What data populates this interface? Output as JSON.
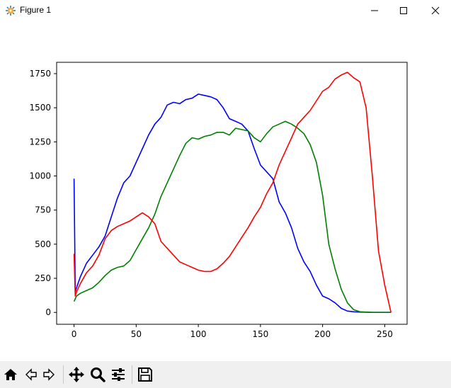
{
  "window": {
    "title": "Figure 1"
  },
  "toolbar": {
    "buttons": [
      {
        "name": "home-button",
        "icon": "home-icon"
      },
      {
        "name": "back-button",
        "icon": "back-arrow-icon"
      },
      {
        "name": "forward-button",
        "icon": "forward-arrow-icon"
      },
      {
        "name": "pan-button",
        "icon": "move-icon"
      },
      {
        "name": "zoom-button",
        "icon": "magnifier-icon"
      },
      {
        "name": "configure-subplots-button",
        "icon": "sliders-icon"
      },
      {
        "name": "save-button",
        "icon": "floppy-disk-icon"
      }
    ]
  },
  "chart_data": {
    "type": "line",
    "title": "",
    "xlabel": "",
    "ylabel": "",
    "xlim": [
      -14,
      268
    ],
    "ylim": [
      -87,
      1833
    ],
    "xticks": [
      0,
      50,
      100,
      150,
      200,
      250
    ],
    "yticks": [
      0,
      250,
      500,
      750,
      1000,
      1250,
      1500,
      1750
    ],
    "grid": false,
    "series": [
      {
        "color": "#0000ff",
        "x": [
          0,
          1,
          2,
          5,
          10,
          15,
          20,
          25,
          30,
          35,
          40,
          45,
          50,
          55,
          60,
          65,
          70,
          75,
          80,
          85,
          90,
          95,
          100,
          105,
          110,
          115,
          120,
          125,
          130,
          135,
          140,
          145,
          150,
          155,
          160,
          165,
          170,
          175,
          180,
          185,
          190,
          195,
          200,
          205,
          210,
          215,
          220,
          225,
          230,
          235,
          240,
          245,
          250,
          255
        ],
        "y": [
          980,
          150,
          180,
          260,
          360,
          420,
          480,
          560,
          700,
          840,
          950,
          1000,
          1100,
          1200,
          1300,
          1380,
          1430,
          1520,
          1540,
          1530,
          1560,
          1570,
          1600,
          1590,
          1580,
          1560,
          1500,
          1420,
          1400,
          1380,
          1330,
          1200,
          1080,
          1030,
          980,
          810,
          730,
          620,
          470,
          370,
          300,
          200,
          120,
          100,
          70,
          30,
          10,
          5,
          2,
          1,
          0,
          0,
          0,
          0
        ]
      },
      {
        "color": "#008000",
        "x": [
          0,
          1,
          2,
          5,
          10,
          15,
          20,
          25,
          30,
          35,
          40,
          45,
          50,
          55,
          60,
          65,
          70,
          75,
          80,
          85,
          90,
          95,
          100,
          105,
          110,
          115,
          120,
          125,
          130,
          135,
          140,
          145,
          150,
          155,
          160,
          165,
          170,
          175,
          180,
          185,
          190,
          195,
          200,
          205,
          210,
          215,
          220,
          225,
          230,
          235,
          240,
          245,
          250,
          255
        ],
        "y": [
          80,
          100,
          120,
          140,
          160,
          180,
          220,
          270,
          310,
          330,
          340,
          380,
          460,
          540,
          620,
          720,
          850,
          950,
          1050,
          1150,
          1240,
          1280,
          1270,
          1290,
          1300,
          1320,
          1320,
          1300,
          1350,
          1340,
          1330,
          1280,
          1250,
          1310,
          1360,
          1380,
          1400,
          1380,
          1350,
          1310,
          1230,
          1100,
          860,
          500,
          320,
          170,
          70,
          20,
          5,
          2,
          0,
          0,
          0,
          0
        ]
      },
      {
        "color": "#ff0000",
        "x": [
          0,
          1,
          2,
          5,
          10,
          15,
          20,
          25,
          30,
          35,
          40,
          45,
          50,
          55,
          60,
          65,
          70,
          75,
          80,
          85,
          90,
          95,
          100,
          105,
          110,
          115,
          120,
          125,
          130,
          135,
          140,
          145,
          150,
          155,
          160,
          165,
          170,
          175,
          180,
          185,
          190,
          195,
          200,
          205,
          210,
          215,
          220,
          225,
          230,
          235,
          240,
          245,
          250,
          255
        ],
        "y": [
          430,
          120,
          150,
          210,
          290,
          340,
          420,
          540,
          600,
          630,
          650,
          670,
          700,
          730,
          700,
          650,
          520,
          470,
          420,
          370,
          350,
          330,
          310,
          300,
          300,
          320,
          360,
          410,
          480,
          550,
          620,
          700,
          770,
          870,
          950,
          1080,
          1180,
          1280,
          1380,
          1430,
          1480,
          1550,
          1620,
          1650,
          1710,
          1740,
          1760,
          1720,
          1690,
          1500,
          1000,
          450,
          200,
          0
        ]
      }
    ]
  }
}
